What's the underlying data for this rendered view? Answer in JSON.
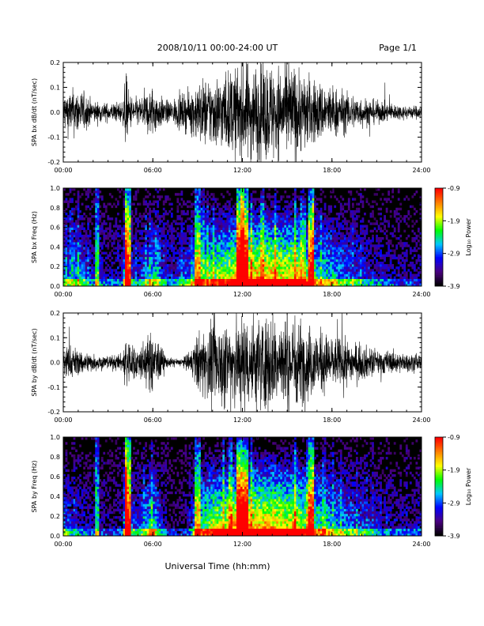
{
  "header": {
    "title": "2008/10/11   00:00-24:00 UT",
    "page": "Page 1/1"
  },
  "footer": {
    "xlabel": "Universal Time (hh:mm)"
  },
  "colorbar": {
    "label": "Log₁₀ Power",
    "ticks": [
      "-0.9",
      "-1.9",
      "-2.9",
      "-3.9"
    ],
    "range": [
      -3.9,
      -0.9
    ],
    "colors": [
      "#000000",
      "#4a0080",
      "#0000ff",
      "#00c8ff",
      "#00ff00",
      "#ffff00",
      "#ff8000",
      "#ff0000"
    ]
  },
  "chart_data": [
    {
      "type": "line",
      "ylabel": "SPA bx dB/dt (nT/sec)",
      "x_range_hours": [
        0,
        24
      ],
      "ylim": [
        -0.2,
        0.2
      ],
      "xticks": [
        "00:00",
        "06:00",
        "12:00",
        "18:00",
        "24:00"
      ],
      "yticks": [
        "0.2",
        "0.1",
        "0.0",
        "-0.1",
        "-0.2"
      ],
      "envelope": {
        "hours": [
          0,
          1,
          2,
          3,
          4,
          4.2,
          4.4,
          5,
          6,
          6.5,
          7,
          8,
          8.5,
          9,
          10,
          11,
          11.5,
          12,
          13,
          14,
          15,
          15.5,
          16,
          17,
          18,
          19,
          20,
          21,
          22,
          23,
          24
        ],
        "amplitude": [
          0.09,
          0.11,
          0.05,
          0.04,
          0.05,
          0.18,
          0.08,
          0.06,
          0.12,
          0.07,
          0.05,
          0.08,
          0.09,
          0.14,
          0.16,
          0.18,
          0.2,
          0.22,
          0.22,
          0.22,
          0.2,
          0.22,
          0.18,
          0.14,
          0.12,
          0.09,
          0.07,
          0.05,
          0.04,
          0.03,
          0.03
        ]
      }
    },
    {
      "type": "heatmap",
      "ylabel": "SPA bx Freq (Hz)",
      "x_range_hours": [
        0,
        24
      ],
      "ylim": [
        0,
        1.0
      ],
      "xticks": [
        "00:00",
        "06:00",
        "12:00",
        "18:00",
        "24:00"
      ],
      "yticks": [
        "1.0",
        "0.8",
        "0.6",
        "0.4",
        "0.2",
        "0.0"
      ],
      "zlabel": "Log10 Power",
      "zlim": [
        -3.9,
        -0.9
      ]
    },
    {
      "type": "line",
      "ylabel": "SPA by dB/dt (nT/sec)",
      "x_range_hours": [
        0,
        24
      ],
      "ylim": [
        -0.2,
        0.2
      ],
      "xticks": [
        "00:00",
        "06:00",
        "12:00",
        "18:00",
        "24:00"
      ],
      "yticks": [
        "0.2",
        "0.1",
        "0.0",
        "-0.1",
        "-0.2"
      ],
      "envelope": {
        "hours": [
          0,
          1,
          2,
          3,
          4,
          4.2,
          4.4,
          5,
          6,
          6.5,
          7,
          8,
          8.5,
          9,
          10,
          11,
          11.5,
          12,
          13,
          14,
          15,
          15.5,
          16,
          17,
          18,
          19,
          20,
          21,
          22,
          23,
          24
        ],
        "amplitude": [
          0.09,
          0.06,
          0.04,
          0.03,
          0.04,
          0.18,
          0.1,
          0.07,
          0.14,
          0.08,
          0.02,
          0.02,
          0.05,
          0.13,
          0.18,
          0.2,
          0.22,
          0.22,
          0.22,
          0.22,
          0.2,
          0.22,
          0.18,
          0.15,
          0.12,
          0.1,
          0.08,
          0.06,
          0.05,
          0.04,
          0.04
        ]
      }
    },
    {
      "type": "heatmap",
      "ylabel": "SPA by Freq (Hz)",
      "x_range_hours": [
        0,
        24
      ],
      "ylim": [
        0,
        1.0
      ],
      "xticks": [
        "00:00",
        "06:00",
        "12:00",
        "18:00",
        "24:00"
      ],
      "yticks": [
        "1.0",
        "0.8",
        "0.6",
        "0.4",
        "0.2",
        "0.0"
      ],
      "zlabel": "Log10 Power",
      "zlim": [
        -3.9,
        -0.9
      ]
    }
  ]
}
